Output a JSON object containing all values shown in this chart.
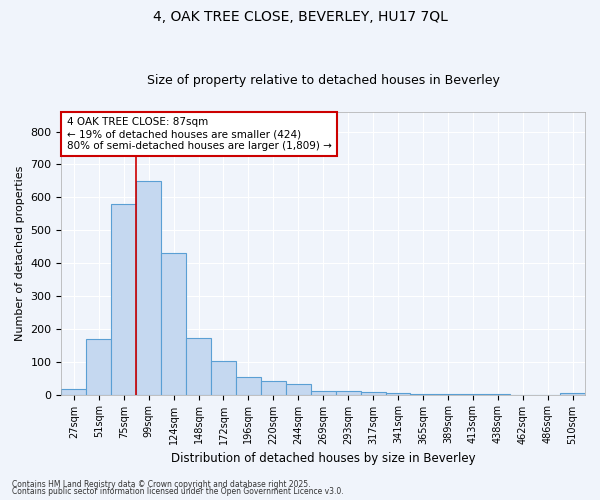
{
  "title1": "4, OAK TREE CLOSE, BEVERLEY, HU17 7QL",
  "title2": "Size of property relative to detached houses in Beverley",
  "xlabel": "Distribution of detached houses by size in Beverley",
  "ylabel": "Number of detached properties",
  "categories": [
    "27sqm",
    "51sqm",
    "75sqm",
    "99sqm",
    "124sqm",
    "148sqm",
    "172sqm",
    "196sqm",
    "220sqm",
    "244sqm",
    "269sqm",
    "293sqm",
    "317sqm",
    "341sqm",
    "365sqm",
    "389sqm",
    "413sqm",
    "438sqm",
    "462sqm",
    "486sqm",
    "510sqm"
  ],
  "values": [
    18,
    168,
    580,
    648,
    430,
    172,
    102,
    52,
    40,
    33,
    10,
    10,
    8,
    4,
    3,
    2,
    1,
    1,
    0,
    0,
    4
  ],
  "bar_color": "#c5d8f0",
  "bar_edge_color": "#5a9fd4",
  "plot_bg_color": "#f0f4fb",
  "fig_bg_color": "#f0f4fb",
  "grid_color": "#ffffff",
  "red_line_x": 2.5,
  "annotation_text": "4 OAK TREE CLOSE: 87sqm\n← 19% of detached houses are smaller (424)\n80% of semi-detached houses are larger (1,809) →",
  "annotation_box_color": "#ffffff",
  "annotation_box_edge": "#cc0000",
  "footnote1": "Contains HM Land Registry data © Crown copyright and database right 2025.",
  "footnote2": "Contains public sector information licensed under the Open Government Licence v3.0.",
  "ylim": [
    0,
    860
  ],
  "yticks": [
    0,
    100,
    200,
    300,
    400,
    500,
    600,
    700,
    800
  ]
}
